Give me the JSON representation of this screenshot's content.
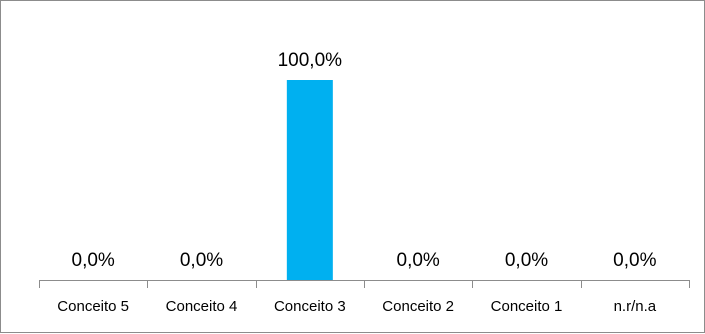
{
  "chart_data": {
    "type": "bar",
    "categories": [
      "Conceito 5",
      "Conceito 4",
      "Conceito 3",
      "Conceito 2",
      "Conceito 1",
      "n.r/n.a"
    ],
    "values": [
      0.0,
      0.0,
      100.0,
      0.0,
      0.0,
      0.0
    ],
    "data_labels": [
      "0,0%",
      "0,0%",
      "100,0%",
      "0,0%",
      "0,0%",
      "0,0%"
    ],
    "title": "",
    "xlabel": "",
    "ylabel": "",
    "ylim": [
      0,
      100
    ],
    "grid": false,
    "legend": "none",
    "bar_color": "#00B0F0"
  }
}
